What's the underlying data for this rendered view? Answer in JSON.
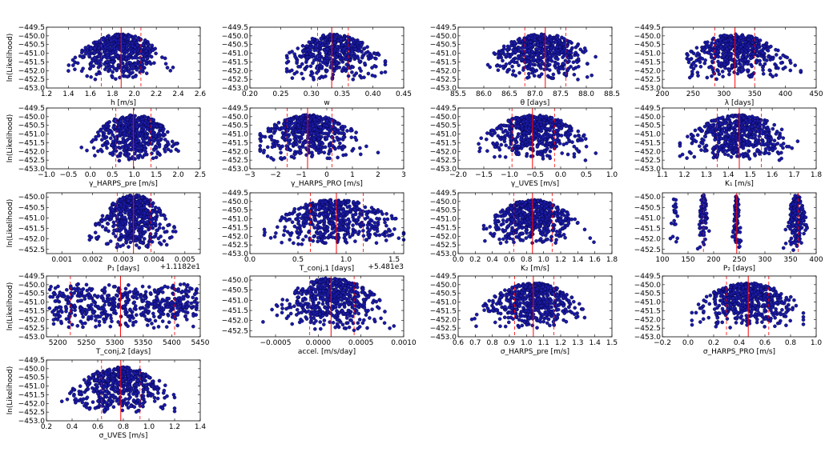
{
  "colors": {
    "points": "#1a1aa6",
    "median": "#ff0000",
    "bounds": "#ff0000"
  },
  "figure": {
    "panel_ylabel": "ln(Likelihood)"
  },
  "chart_data": [
    {
      "type": "scatter",
      "row": 0,
      "col": 0,
      "xlabel": "h [m/s]",
      "ylabel": "ln(Likelihood)",
      "xlim": [
        1.2,
        2.6
      ],
      "xticks": [
        1.2,
        1.4,
        1.6,
        1.8,
        2.0,
        2.2,
        2.4,
        2.6
      ],
      "xtick_labels": [
        "1.2",
        "1.4",
        "1.6",
        "1.8",
        "2.0",
        "2.2",
        "2.4",
        "2.6"
      ],
      "ylim": [
        -453.0,
        -449.5
      ],
      "yticks": [
        -449.5,
        -450.0,
        -450.5,
        -451.0,
        -451.5,
        -452.0,
        -452.5,
        -453.0
      ],
      "ytick_labels": [
        "−449.5",
        "−450.0",
        "−450.5",
        "−451.0",
        "−451.5",
        "−452.0",
        "−452.5",
        "−453.0"
      ],
      "median": 1.88,
      "interval": [
        1.7,
        2.06
      ],
      "dist": {
        "center": 1.88,
        "spread": 0.17,
        "min": 1.4,
        "max": 2.45,
        "n": 520
      },
      "offset": ""
    },
    {
      "type": "scatter",
      "row": 0,
      "col": 1,
      "xlabel": "w",
      "ylabel": "",
      "xlim": [
        0.2,
        0.45
      ],
      "xticks": [
        0.2,
        0.25,
        0.3,
        0.35,
        0.4,
        0.45
      ],
      "xtick_labels": [
        "0.20",
        "0.25",
        "0.30",
        "0.35",
        "0.40",
        "0.45"
      ],
      "ylim": [
        -453.0,
        -449.5
      ],
      "yticks": [
        -449.5,
        -450.0,
        -450.5,
        -451.0,
        -451.5,
        -452.0,
        -452.5,
        -453.0
      ],
      "ytick_labels": [
        "−449.5",
        "−450.0",
        "−450.5",
        "−451.0",
        "−451.5",
        "−452.0",
        "−452.5",
        "−453.0"
      ],
      "median": 0.333,
      "interval": [
        0.31,
        0.36
      ],
      "dist": {
        "center": 0.335,
        "spread": 0.032,
        "min": 0.26,
        "max": 0.42,
        "n": 520
      },
      "offset": ""
    },
    {
      "type": "scatter",
      "row": 0,
      "col": 2,
      "xlabel": "θ [days]",
      "ylabel": "",
      "xlim": [
        85.5,
        88.5
      ],
      "xticks": [
        85.5,
        86.0,
        86.5,
        87.0,
        87.5,
        88.0,
        88.5
      ],
      "xtick_labels": [
        "85.5",
        "86.0",
        "86.5",
        "87.0",
        "87.5",
        "88.0",
        "88.5"
      ],
      "ylim": [
        -453.0,
        -449.5
      ],
      "yticks": [
        -449.5,
        -450.0,
        -450.5,
        -451.0,
        -451.5,
        -452.0,
        -452.5,
        -453.0
      ],
      "ytick_labels": [
        "−449.5",
        "−450.0",
        "−450.5",
        "−451.0",
        "−451.5",
        "−452.0",
        "−452.5",
        "−453.0"
      ],
      "median": 87.2,
      "interval": [
        86.8,
        87.6
      ],
      "dist": {
        "center": 87.15,
        "spread": 0.42,
        "min": 86.0,
        "max": 88.2,
        "n": 520
      },
      "offset": ""
    },
    {
      "type": "scatter",
      "row": 0,
      "col": 3,
      "xlabel": "λ [days]",
      "ylabel": "",
      "xlim": [
        200,
        450
      ],
      "xticks": [
        200,
        250,
        300,
        350,
        400,
        450
      ],
      "xtick_labels": [
        "200",
        "250",
        "300",
        "350",
        "400",
        "450"
      ],
      "ylim": [
        -453.0,
        -449.5
      ],
      "yticks": [
        -449.5,
        -450.0,
        -450.5,
        -451.0,
        -451.5,
        -452.0,
        -452.5,
        -453.0
      ],
      "ytick_labels": [
        "−449.5",
        "−450.0",
        "−450.5",
        "−451.0",
        "−451.5",
        "−452.0",
        "−452.5",
        "−453.0"
      ],
      "median": 318,
      "interval": [
        285,
        350
      ],
      "dist": {
        "center": 318,
        "spread": 34,
        "min": 240,
        "max": 425,
        "n": 520
      },
      "offset": ""
    },
    {
      "type": "scatter",
      "row": 1,
      "col": 0,
      "xlabel": "γ_HARPS_pre [m/s]",
      "ylabel": "ln(Likelihood)",
      "xlim": [
        -1.0,
        2.5
      ],
      "xticks": [
        -1.0,
        -0.5,
        0.0,
        0.5,
        1.0,
        1.5,
        2.0,
        2.5
      ],
      "xtick_labels": [
        "−1.0",
        "−0.5",
        "0.0",
        "0.5",
        "1.0",
        "1.5",
        "2.0",
        "2.5"
      ],
      "ylim": [
        -453.0,
        -449.5
      ],
      "yticks": [
        -449.5,
        -450.0,
        -450.5,
        -451.0,
        -451.5,
        -452.0,
        -452.5,
        -453.0
      ],
      "ytick_labels": [
        "−449.5",
        "−450.0",
        "−450.5",
        "−451.0",
        "−451.5",
        "−452.0",
        "−452.5",
        "−453.0"
      ],
      "median": 0.98,
      "interval": [
        0.58,
        1.38
      ],
      "dist": {
        "center": 0.98,
        "spread": 0.4,
        "min": -0.5,
        "max": 2.0,
        "n": 520
      },
      "offset": ""
    },
    {
      "type": "scatter",
      "row": 1,
      "col": 1,
      "xlabel": "γ_HARPS_PRO [m/s]",
      "ylabel": "",
      "xlim": [
        -3,
        3
      ],
      "xticks": [
        -3,
        -2,
        -1,
        0,
        1,
        2,
        3
      ],
      "xtick_labels": [
        "−3",
        "−2",
        "−1",
        "0",
        "1",
        "2",
        "3"
      ],
      "ylim": [
        -453.0,
        -449.5
      ],
      "yticks": [
        -449.5,
        -450.0,
        -450.5,
        -451.0,
        -451.5,
        -452.0,
        -452.5,
        -453.0
      ],
      "ytick_labels": [
        "−449.5",
        "−450.0",
        "−450.5",
        "−451.0",
        "−451.5",
        "−452.0",
        "−452.5",
        "−453.0"
      ],
      "median": -0.75,
      "interval": [
        -1.55,
        0.2
      ],
      "dist": {
        "center": -0.7,
        "spread": 0.85,
        "min": -2.6,
        "max": 2.0,
        "n": 520
      },
      "offset": ""
    },
    {
      "type": "scatter",
      "row": 1,
      "col": 2,
      "xlabel": "γ_UVES [m/s]",
      "ylabel": "",
      "xlim": [
        -2.0,
        1.0
      ],
      "xticks": [
        -2.0,
        -1.5,
        -1.0,
        -0.5,
        0.0,
        0.5,
        1.0
      ],
      "xtick_labels": [
        "−2.0",
        "−1.5",
        "−1.0",
        "−0.5",
        "0.0",
        "0.5",
        "1.0"
      ],
      "ylim": [
        -453.0,
        -449.5
      ],
      "yticks": [
        -449.5,
        -450.0,
        -450.5,
        -451.0,
        -451.5,
        -452.0,
        -452.5,
        -453.0
      ],
      "ytick_labels": [
        "−449.5",
        "−450.0",
        "−450.5",
        "−451.0",
        "−451.5",
        "−452.0",
        "−452.5",
        "−453.0"
      ],
      "median": -0.55,
      "interval": [
        -0.95,
        -0.12
      ],
      "dist": {
        "center": -0.52,
        "spread": 0.42,
        "min": -1.6,
        "max": 0.75,
        "n": 520
      },
      "offset": ""
    },
    {
      "type": "scatter",
      "row": 1,
      "col": 3,
      "xlabel": "K₁ [m/s]",
      "ylabel": "",
      "xlim": [
        1.1,
        1.8
      ],
      "xticks": [
        1.1,
        1.2,
        1.3,
        1.4,
        1.5,
        1.6,
        1.7,
        1.8
      ],
      "xtick_labels": [
        "1.1",
        "1.2",
        "1.3",
        "1.4",
        "1.5",
        "1.6",
        "1.7",
        "1.8"
      ],
      "ylim": [
        -453.0,
        -449.5
      ],
      "yticks": [
        -449.5,
        -450.0,
        -450.5,
        -451.0,
        -451.5,
        -452.0,
        -452.5,
        -453.0
      ],
      "ytick_labels": [
        "−449.5",
        "−450.0",
        "−450.5",
        "−451.0",
        "−451.5",
        "−452.0",
        "−452.5",
        "−453.0"
      ],
      "median": 1.45,
      "interval": [
        1.35,
        1.55
      ],
      "dist": {
        "center": 1.45,
        "spread": 0.1,
        "min": 1.18,
        "max": 1.72,
        "n": 520
      },
      "offset": ""
    },
    {
      "type": "scatter",
      "row": 2,
      "col": 0,
      "xlabel": "P₁ [days]",
      "ylabel": "ln(Likelihood)",
      "xlim": [
        0.0005,
        0.0055
      ],
      "xticks": [
        0.001,
        0.002,
        0.003,
        0.004,
        0.005
      ],
      "xtick_labels": [
        "0.001",
        "0.002",
        "0.003",
        "0.004",
        "0.005"
      ],
      "ylim": [
        -452.7,
        -449.8
      ],
      "yticks": [
        -450.0,
        -450.5,
        -451.0,
        -451.5,
        -452.0,
        -452.5
      ],
      "ytick_labels": [
        "−450.0",
        "−450.5",
        "−451.0",
        "−451.5",
        "−452.0",
        "−452.5"
      ],
      "median": 0.00333,
      "interval": [
        0.0028,
        0.0039
      ],
      "dist": {
        "center": 0.00335,
        "spread": 0.0005,
        "min": 0.0019,
        "max": 0.0047,
        "n": 520
      },
      "offset": "+1.1182e1"
    },
    {
      "type": "scatter",
      "row": 2,
      "col": 1,
      "xlabel": "T_conj,1 [days]",
      "ylabel": "",
      "xlim": [
        0.0,
        1.6
      ],
      "xticks": [
        0.0,
        0.5,
        1.0,
        1.5
      ],
      "xtick_labels": [
        "0.0",
        "0.5",
        "1.0",
        "1.5"
      ],
      "ylim": [
        -453.0,
        -449.5
      ],
      "yticks": [
        -449.5,
        -450.0,
        -450.5,
        -451.0,
        -451.5,
        -452.0,
        -452.5,
        -453.0
      ],
      "ytick_labels": [
        "−449.5",
        "−450.0",
        "−450.5",
        "−451.0",
        "−451.5",
        "−452.0",
        "−452.5",
        "−453.0"
      ],
      "median": 0.9,
      "interval": [
        0.63,
        1.18
      ],
      "dist": {
        "center": 0.9,
        "spread": 0.28,
        "min": 0.15,
        "max": 1.6,
        "n": 520
      },
      "offset": "+5.481e3"
    },
    {
      "type": "scatter",
      "row": 2,
      "col": 2,
      "xlabel": "K₂ [m/s]",
      "ylabel": "",
      "xlim": [
        0.0,
        1.8
      ],
      "xticks": [
        0.0,
        0.2,
        0.4,
        0.6,
        0.8,
        1.0,
        1.2,
        1.4,
        1.6,
        1.8
      ],
      "xtick_labels": [
        "0.0",
        "0.2",
        "0.4",
        "0.6",
        "0.8",
        "1.0",
        "1.2",
        "1.4",
        "1.6",
        "1.8"
      ],
      "ylim": [
        -453.0,
        -449.5
      ],
      "yticks": [
        -449.5,
        -450.0,
        -450.5,
        -451.0,
        -451.5,
        -452.0,
        -452.5,
        -453.0
      ],
      "ytick_labels": [
        "−449.5",
        "−450.0",
        "−450.5",
        "−451.0",
        "−451.5",
        "−452.0",
        "−452.5",
        "−453.0"
      ],
      "median": 0.87,
      "interval": [
        0.65,
        1.1
      ],
      "dist": {
        "center": 0.87,
        "spread": 0.22,
        "min": 0.3,
        "max": 1.65,
        "n": 520
      },
      "offset": ""
    },
    {
      "type": "scatter",
      "row": 2,
      "col": 3,
      "xlabel": "P₂ [days]",
      "ylabel": "",
      "xlim": [
        100,
        400
      ],
      "xticks": [
        100,
        150,
        200,
        250,
        300,
        350,
        400
      ],
      "xtick_labels": [
        "100",
        "150",
        "200",
        "250",
        "300",
        "350",
        "400"
      ],
      "ylim": [
        -452.7,
        -449.8
      ],
      "yticks": [
        -450.0,
        -450.5,
        -451.0,
        -451.5,
        -452.0,
        -452.5
      ],
      "ytick_labels": [
        "−450.0",
        "−450.5",
        "−451.0",
        "−451.5",
        "−452.0",
        "−452.5"
      ],
      "median": 245,
      "interval": [
        180,
        365
      ],
      "clusters": [
        {
          "center": 125,
          "spread": 3,
          "n": 20
        },
        {
          "center": 180,
          "spread": 4,
          "n": 90
        },
        {
          "center": 245,
          "spread": 3,
          "n": 80
        },
        {
          "center": 362,
          "spread": 8,
          "n": 170
        }
      ],
      "offset": ""
    },
    {
      "type": "scatter",
      "row": 3,
      "col": 0,
      "xlabel": "T_conj,2 [days]",
      "ylabel": "ln(Likelihood)",
      "xlim": [
        5180,
        5450
      ],
      "xticks": [
        5200,
        5250,
        5300,
        5350,
        5400,
        5450
      ],
      "xtick_labels": [
        "5200",
        "5250",
        "5300",
        "5350",
        "5400",
        "5450"
      ],
      "ylim": [
        -453.0,
        -449.5
      ],
      "yticks": [
        -449.5,
        -450.0,
        -450.5,
        -451.0,
        -451.5,
        -452.0,
        -452.5,
        -453.0
      ],
      "ytick_labels": [
        "−449.5",
        "−450.0",
        "−450.5",
        "−451.0",
        "−451.5",
        "−452.0",
        "−452.5",
        "−453.0"
      ],
      "median": 5310,
      "interval": [
        5222,
        5405
      ],
      "uniform": {
        "min": 5185,
        "max": 5445,
        "n": 520
      },
      "offset": ""
    },
    {
      "type": "scatter",
      "row": 3,
      "col": 1,
      "xlabel": "accel. [m/s/day]",
      "ylabel": "",
      "xlim": [
        -0.0008,
        0.001
      ],
      "xticks": [
        -0.0005,
        0.0,
        0.0005,
        0.001
      ],
      "xtick_labels": [
        "−0.0005",
        "0.0000",
        "0.0005",
        "0.0010"
      ],
      "ylim": [
        -452.8,
        -449.8
      ],
      "yticks": [
        -450.0,
        -450.5,
        -451.0,
        -451.5,
        -452.0,
        -452.5
      ],
      "ytick_labels": [
        "−450.0",
        "−450.5",
        "−451.0",
        "−451.5",
        "−452.0",
        "−452.5"
      ],
      "median": 0.00015,
      "interval": [
        -0.0001,
        0.00042
      ],
      "dist": {
        "center": 0.00015,
        "spread": 0.00026,
        "min": -0.00065,
        "max": 0.0009,
        "n": 520
      },
      "offset": ""
    },
    {
      "type": "scatter",
      "row": 3,
      "col": 2,
      "xlabel": "σ_HARPS_pre [m/s]",
      "ylabel": "",
      "xlim": [
        0.6,
        1.5
      ],
      "xticks": [
        0.6,
        0.7,
        0.8,
        0.9,
        1.0,
        1.1,
        1.2,
        1.3,
        1.4,
        1.5
      ],
      "xtick_labels": [
        "0.6",
        "0.7",
        "0.8",
        "0.9",
        "1.0",
        "1.1",
        "1.2",
        "1.3",
        "1.4",
        "1.5"
      ],
      "ylim": [
        -453.0,
        -449.5
      ],
      "yticks": [
        -449.5,
        -450.0,
        -450.5,
        -451.0,
        -451.5,
        -452.0,
        -452.5,
        -453.0
      ],
      "ytick_labels": [
        "−449.5",
        "−450.0",
        "−450.5",
        "−451.0",
        "−451.5",
        "−452.0",
        "−452.5",
        "−453.0"
      ],
      "median": 1.04,
      "interval": [
        0.93,
        1.16
      ],
      "dist": {
        "center": 1.04,
        "spread": 0.12,
        "min": 0.68,
        "max": 1.37,
        "n": 520
      },
      "offset": ""
    },
    {
      "type": "scatter",
      "row": 3,
      "col": 3,
      "xlabel": "σ_HARPS_PRO [m/s]",
      "ylabel": "",
      "xlim": [
        -0.2,
        1.0
      ],
      "xticks": [
        -0.2,
        0.0,
        0.2,
        0.4,
        0.6,
        0.8,
        1.0
      ],
      "xtick_labels": [
        "−0.2",
        "0.0",
        "0.2",
        "0.4",
        "0.6",
        "0.8",
        "1.0"
      ],
      "ylim": [
        -453.0,
        -449.5
      ],
      "yticks": [
        -449.5,
        -450.0,
        -450.5,
        -451.0,
        -451.5,
        -452.0,
        -452.5,
        -453.0
      ],
      "ytick_labels": [
        "−449.5",
        "−450.0",
        "−450.5",
        "−451.0",
        "−451.5",
        "−452.0",
        "−452.5",
        "−453.0"
      ],
      "median": 0.47,
      "interval": [
        0.3,
        0.63
      ],
      "dist": {
        "center": 0.47,
        "spread": 0.17,
        "min": 0.03,
        "max": 0.9,
        "n": 520
      },
      "offset": ""
    },
    {
      "type": "scatter",
      "row": 4,
      "col": 0,
      "xlabel": "σ_UVES [m/s]",
      "ylabel": "ln(Likelihood)",
      "xlim": [
        0.2,
        1.4
      ],
      "xticks": [
        0.2,
        0.4,
        0.6,
        0.8,
        1.0,
        1.2,
        1.4
      ],
      "xtick_labels": [
        "0.2",
        "0.4",
        "0.6",
        "0.8",
        "1.0",
        "1.2",
        "1.4"
      ],
      "ylim": [
        -453.0,
        -449.5
      ],
      "yticks": [
        -449.5,
        -450.0,
        -450.5,
        -451.0,
        -451.5,
        -452.0,
        -452.5,
        -453.0
      ],
      "ytick_labels": [
        "−449.5",
        "−450.0",
        "−450.5",
        "−451.0",
        "−451.5",
        "−452.0",
        "−452.5",
        "−453.0"
      ],
      "median": 0.78,
      "interval": [
        0.63,
        0.93
      ],
      "dist": {
        "center": 0.78,
        "spread": 0.16,
        "min": 0.3,
        "max": 1.2,
        "n": 520
      },
      "offset": ""
    }
  ]
}
